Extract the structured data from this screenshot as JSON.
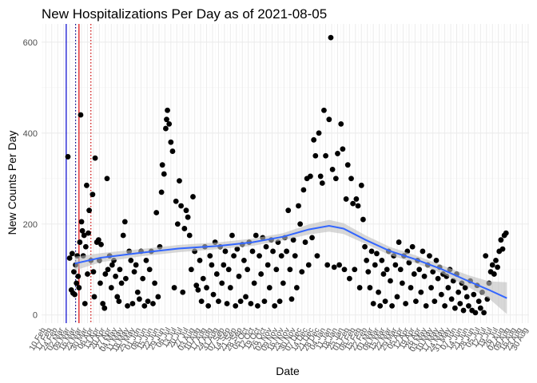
{
  "chart_data": {
    "type": "scatter",
    "title": "New Hospitalizations Per Day as of 2021-08-05",
    "xlabel": "Date",
    "ylabel": "New Counts Per Day",
    "ylim": [
      -18,
      640
    ],
    "y_ticks": [
      0,
      200,
      400,
      600
    ],
    "xlim": [
      "2020-02-05",
      "2021-08-31"
    ],
    "x_tick_labels": [
      "10 Feb",
      "17 Feb",
      "24 Feb",
      "02 Mar",
      "09 Mar",
      "16 Mar",
      "23 Mar",
      "30 Mar",
      "06 Apr",
      "13 Apr",
      "20 Apr",
      "27 Apr",
      "04 May",
      "11 May",
      "18 May",
      "25 May",
      "01 Jun",
      "08 Jun",
      "15 Jun",
      "22 Jun",
      "29 Jun",
      "06 Jul",
      "13 Jul",
      "20 Jul",
      "27 Jul",
      "03 Aug",
      "10 Aug",
      "17 Aug",
      "24 Aug",
      "31 Aug",
      "07 Sep",
      "14 Sep",
      "21 Sep",
      "28 Sep",
      "05 Oct",
      "12 Oct",
      "19 Oct",
      "26 Oct",
      "02 Nov",
      "09 Nov",
      "16 Nov",
      "23 Nov",
      "30 Nov",
      "07 Dec",
      "14 Dec",
      "21 Dec",
      "28 Dec",
      "04 Jan",
      "11 Jan",
      "18 Jan",
      "25 Jan",
      "01 Feb",
      "08 Feb",
      "15 Feb",
      "22 Feb",
      "01 Mar",
      "08 Mar",
      "15 Mar",
      "22 Mar",
      "29 Mar",
      "05 Apr",
      "12 Apr",
      "19 Apr",
      "26 Apr",
      "03 May",
      "10 May",
      "17 May",
      "24 May",
      "31 May",
      "07 Jun",
      "14 Jun",
      "21 Jun",
      "28 Jun",
      "05 Jul",
      "12 Jul",
      "19 Jul",
      "26 Jul",
      "02 Aug",
      "09 Aug",
      "16 Aug",
      "23 Aug",
      "30 Aug"
    ],
    "grid": true,
    "reference_lines": [
      {
        "date": "2020-03-05",
        "color": "#0000cc",
        "style": "solid"
      },
      {
        "date": "2020-03-16",
        "color": "#00008b",
        "style": "dotted"
      },
      {
        "date": "2020-03-20",
        "color": "#dd0000",
        "style": "solid"
      },
      {
        "date": "2020-04-03",
        "color": "#cc0000",
        "style": "dotted"
      }
    ],
    "point_color": "#000000",
    "smooth": {
      "color": "#3366ff",
      "band_color": "#bebebe",
      "points": [
        {
          "date": "2020-03-15",
          "y": 113,
          "lo": 98,
          "hi": 128
        },
        {
          "date": "2020-04-15",
          "y": 126,
          "lo": 116,
          "hi": 136
        },
        {
          "date": "2020-06-01",
          "y": 137,
          "lo": 129,
          "hi": 145
        },
        {
          "date": "2020-07-15",
          "y": 146,
          "lo": 138,
          "hi": 154
        },
        {
          "date": "2020-09-01",
          "y": 152,
          "lo": 145,
          "hi": 160
        },
        {
          "date": "2020-10-10",
          "y": 160,
          "lo": 152,
          "hi": 168
        },
        {
          "date": "2020-11-15",
          "y": 172,
          "lo": 164,
          "hi": 180
        },
        {
          "date": "2020-12-15",
          "y": 188,
          "lo": 177,
          "hi": 199
        },
        {
          "date": "2021-01-08",
          "y": 196,
          "lo": 183,
          "hi": 209
        },
        {
          "date": "2021-01-25",
          "y": 190,
          "lo": 178,
          "hi": 202
        },
        {
          "date": "2021-02-20",
          "y": 165,
          "lo": 156,
          "hi": 175
        },
        {
          "date": "2021-03-20",
          "y": 141,
          "lo": 132,
          "hi": 150
        },
        {
          "date": "2021-04-20",
          "y": 122,
          "lo": 114,
          "hi": 131
        },
        {
          "date": "2021-05-20",
          "y": 101,
          "lo": 92,
          "hi": 110
        },
        {
          "date": "2021-06-20",
          "y": 75,
          "lo": 62,
          "hi": 88
        },
        {
          "date": "2021-07-15",
          "y": 55,
          "lo": 36,
          "hi": 74
        },
        {
          "date": "2021-08-05",
          "y": 37,
          "lo": 2,
          "hi": 72
        }
      ]
    },
    "points": [
      [
        "2020-03-07",
        348
      ],
      [
        "2020-03-09",
        125
      ],
      [
        "2020-03-11",
        55
      ],
      [
        "2020-03-12",
        135
      ],
      [
        "2020-03-13",
        48
      ],
      [
        "2020-03-14",
        95
      ],
      [
        "2020-03-15",
        45
      ],
      [
        "2020-03-16",
        110
      ],
      [
        "2020-03-17",
        70
      ],
      [
        "2020-03-18",
        130
      ],
      [
        "2020-03-19",
        85
      ],
      [
        "2020-03-20",
        60
      ],
      [
        "2020-03-21",
        160
      ],
      [
        "2020-03-22",
        440
      ],
      [
        "2020-03-23",
        205
      ],
      [
        "2020-03-24",
        185
      ],
      [
        "2020-03-25",
        130
      ],
      [
        "2020-03-26",
        175
      ],
      [
        "2020-03-27",
        25
      ],
      [
        "2020-03-28",
        150
      ],
      [
        "2020-03-29",
        285
      ],
      [
        "2020-03-30",
        90
      ],
      [
        "2020-03-31",
        180
      ],
      [
        "2020-04-01",
        230
      ],
      [
        "2020-04-03",
        120
      ],
      [
        "2020-04-05",
        265
      ],
      [
        "2020-04-06",
        95
      ],
      [
        "2020-04-07",
        40
      ],
      [
        "2020-04-08",
        345
      ],
      [
        "2020-04-10",
        160
      ],
      [
        "2020-04-12",
        165
      ],
      [
        "2020-04-13",
        120
      ],
      [
        "2020-04-14",
        70
      ],
      [
        "2020-04-15",
        155
      ],
      [
        "2020-04-17",
        25
      ],
      [
        "2020-04-19",
        15
      ],
      [
        "2020-04-20",
        90
      ],
      [
        "2020-04-22",
        300
      ],
      [
        "2020-04-23",
        100
      ],
      [
        "2020-04-25",
        130
      ],
      [
        "2020-04-27",
        60
      ],
      [
        "2020-04-28",
        110
      ],
      [
        "2020-04-30",
        120
      ],
      [
        "2020-05-02",
        85
      ],
      [
        "2020-05-04",
        40
      ],
      [
        "2020-05-06",
        30
      ],
      [
        "2020-05-07",
        100
      ],
      [
        "2020-05-09",
        70
      ],
      [
        "2020-05-11",
        175
      ],
      [
        "2020-05-13",
        205
      ],
      [
        "2020-05-14",
        80
      ],
      [
        "2020-05-16",
        20
      ],
      [
        "2020-05-18",
        140
      ],
      [
        "2020-05-20",
        120
      ],
      [
        "2020-05-22",
        25
      ],
      [
        "2020-05-24",
        95
      ],
      [
        "2020-05-26",
        110
      ],
      [
        "2020-05-28",
        50
      ],
      [
        "2020-05-30",
        35
      ],
      [
        "2020-06-01",
        140
      ],
      [
        "2020-06-03",
        80
      ],
      [
        "2020-06-05",
        20
      ],
      [
        "2020-06-07",
        120
      ],
      [
        "2020-06-09",
        30
      ],
      [
        "2020-06-11",
        100
      ],
      [
        "2020-06-13",
        140
      ],
      [
        "2020-06-15",
        25
      ],
      [
        "2020-06-17",
        70
      ],
      [
        "2020-06-19",
        225
      ],
      [
        "2020-06-21",
        40
      ],
      [
        "2020-06-23",
        150
      ],
      [
        "2020-06-25",
        270
      ],
      [
        "2020-06-26",
        330
      ],
      [
        "2020-06-28",
        310
      ],
      [
        "2020-06-30",
        410
      ],
      [
        "2020-07-01",
        430
      ],
      [
        "2020-07-02",
        450
      ],
      [
        "2020-07-04",
        420
      ],
      [
        "2020-07-06",
        380
      ],
      [
        "2020-07-08",
        360
      ],
      [
        "2020-07-10",
        60
      ],
      [
        "2020-07-12",
        250
      ],
      [
        "2020-07-14",
        200
      ],
      [
        "2020-07-16",
        295
      ],
      [
        "2020-07-18",
        240
      ],
      [
        "2020-07-20",
        50
      ],
      [
        "2020-07-22",
        190
      ],
      [
        "2020-07-24",
        230
      ],
      [
        "2020-07-26",
        215
      ],
      [
        "2020-07-28",
        175
      ],
      [
        "2020-07-30",
        100
      ],
      [
        "2020-08-01",
        260
      ],
      [
        "2020-08-03",
        140
      ],
      [
        "2020-08-05",
        65
      ],
      [
        "2020-08-07",
        55
      ],
      [
        "2020-08-09",
        120
      ],
      [
        "2020-08-11",
        30
      ],
      [
        "2020-08-13",
        80
      ],
      [
        "2020-08-15",
        150
      ],
      [
        "2020-08-17",
        60
      ],
      [
        "2020-08-19",
        20
      ],
      [
        "2020-08-21",
        130
      ],
      [
        "2020-08-23",
        110
      ],
      [
        "2020-08-25",
        45
      ],
      [
        "2020-08-27",
        160
      ],
      [
        "2020-08-29",
        90
      ],
      [
        "2020-08-31",
        30
      ],
      [
        "2020-09-02",
        150
      ],
      [
        "2020-09-04",
        70
      ],
      [
        "2020-09-06",
        110
      ],
      [
        "2020-09-08",
        140
      ],
      [
        "2020-09-10",
        25
      ],
      [
        "2020-09-12",
        100
      ],
      [
        "2020-09-14",
        60
      ],
      [
        "2020-09-16",
        175
      ],
      [
        "2020-09-18",
        130
      ],
      [
        "2020-09-20",
        20
      ],
      [
        "2020-09-22",
        145
      ],
      [
        "2020-09-24",
        85
      ],
      [
        "2020-09-26",
        30
      ],
      [
        "2020-09-28",
        155
      ],
      [
        "2020-09-30",
        120
      ],
      [
        "2020-10-02",
        40
      ],
      [
        "2020-10-04",
        100
      ],
      [
        "2020-10-06",
        160
      ],
      [
        "2020-10-08",
        25
      ],
      [
        "2020-10-10",
        140
      ],
      [
        "2020-10-12",
        70
      ],
      [
        "2020-10-14",
        175
      ],
      [
        "2020-10-16",
        20
      ],
      [
        "2020-10-18",
        130
      ],
      [
        "2020-10-20",
        90
      ],
      [
        "2020-10-22",
        170
      ],
      [
        "2020-10-24",
        30
      ],
      [
        "2020-10-26",
        150
      ],
      [
        "2020-10-28",
        110
      ],
      [
        "2020-10-30",
        60
      ],
      [
        "2020-11-01",
        165
      ],
      [
        "2020-11-03",
        140
      ],
      [
        "2020-11-05",
        20
      ],
      [
        "2020-11-07",
        100
      ],
      [
        "2020-11-09",
        160
      ],
      [
        "2020-11-11",
        30
      ],
      [
        "2020-11-13",
        130
      ],
      [
        "2020-11-15",
        70
      ],
      [
        "2020-11-17",
        170
      ],
      [
        "2020-11-19",
        140
      ],
      [
        "2020-11-21",
        230
      ],
      [
        "2020-11-23",
        100
      ],
      [
        "2020-11-25",
        35
      ],
      [
        "2020-11-27",
        165
      ],
      [
        "2020-11-29",
        130
      ],
      [
        "2020-12-01",
        60
      ],
      [
        "2020-12-03",
        240
      ],
      [
        "2020-12-05",
        200
      ],
      [
        "2020-12-07",
        95
      ],
      [
        "2020-12-09",
        275
      ],
      [
        "2020-12-11",
        160
      ],
      [
        "2020-12-13",
        300
      ],
      [
        "2020-12-15",
        110
      ],
      [
        "2020-12-17",
        305
      ],
      [
        "2020-12-19",
        170
      ],
      [
        "2020-12-21",
        385
      ],
      [
        "2020-12-23",
        350
      ],
      [
        "2020-12-25",
        130
      ],
      [
        "2020-12-27",
        400
      ],
      [
        "2020-12-29",
        305
      ],
      [
        "2020-12-31",
        290
      ],
      [
        "2021-01-02",
        450
      ],
      [
        "2021-01-04",
        350
      ],
      [
        "2021-01-06",
        110
      ],
      [
        "2021-01-08",
        430
      ],
      [
        "2021-01-10",
        610
      ],
      [
        "2021-01-12",
        320
      ],
      [
        "2021-01-14",
        105
      ],
      [
        "2021-01-16",
        300
      ],
      [
        "2021-01-18",
        355
      ],
      [
        "2021-01-20",
        110
      ],
      [
        "2021-01-22",
        420
      ],
      [
        "2021-01-24",
        365
      ],
      [
        "2021-01-26",
        100
      ],
      [
        "2021-01-28",
        255
      ],
      [
        "2021-01-30",
        330
      ],
      [
        "2021-02-01",
        80
      ],
      [
        "2021-02-03",
        300
      ],
      [
        "2021-02-05",
        245
      ],
      [
        "2021-02-07",
        100
      ],
      [
        "2021-02-09",
        255
      ],
      [
        "2021-02-11",
        240
      ],
      [
        "2021-02-13",
        60
      ],
      [
        "2021-02-15",
        285
      ],
      [
        "2021-02-17",
        210
      ],
      [
        "2021-02-19",
        150
      ],
      [
        "2021-02-21",
        120
      ],
      [
        "2021-02-23",
        95
      ],
      [
        "2021-02-25",
        60
      ],
      [
        "2021-02-27",
        140
      ],
      [
        "2021-03-01",
        25
      ],
      [
        "2021-03-03",
        110
      ],
      [
        "2021-03-05",
        135
      ],
      [
        "2021-03-07",
        50
      ],
      [
        "2021-03-09",
        20
      ],
      [
        "2021-03-11",
        120
      ],
      [
        "2021-03-13",
        90
      ],
      [
        "2021-03-15",
        30
      ],
      [
        "2021-03-17",
        100
      ],
      [
        "2021-03-19",
        140
      ],
      [
        "2021-03-21",
        75
      ],
      [
        "2021-03-23",
        20
      ],
      [
        "2021-03-25",
        130
      ],
      [
        "2021-03-27",
        110
      ],
      [
        "2021-03-29",
        40
      ],
      [
        "2021-03-31",
        160
      ],
      [
        "2021-04-02",
        100
      ],
      [
        "2021-04-04",
        70
      ],
      [
        "2021-04-06",
        130
      ],
      [
        "2021-04-08",
        25
      ],
      [
        "2021-04-10",
        140
      ],
      [
        "2021-04-12",
        115
      ],
      [
        "2021-04-14",
        60
      ],
      [
        "2021-04-16",
        150
      ],
      [
        "2021-04-18",
        90
      ],
      [
        "2021-04-20",
        30
      ],
      [
        "2021-04-22",
        120
      ],
      [
        "2021-04-24",
        100
      ],
      [
        "2021-04-26",
        50
      ],
      [
        "2021-04-28",
        140
      ],
      [
        "2021-04-30",
        85
      ],
      [
        "2021-05-02",
        20
      ],
      [
        "2021-05-04",
        110
      ],
      [
        "2021-05-06",
        130
      ],
      [
        "2021-05-08",
        60
      ],
      [
        "2021-05-10",
        95
      ],
      [
        "2021-05-12",
        30
      ],
      [
        "2021-05-14",
        120
      ],
      [
        "2021-05-16",
        80
      ],
      [
        "2021-05-18",
        105
      ],
      [
        "2021-05-20",
        45
      ],
      [
        "2021-05-22",
        90
      ],
      [
        "2021-05-24",
        20
      ],
      [
        "2021-05-26",
        85
      ],
      [
        "2021-05-28",
        60
      ],
      [
        "2021-05-30",
        100
      ],
      [
        "2021-06-01",
        35
      ],
      [
        "2021-06-03",
        75
      ],
      [
        "2021-06-05",
        15
      ],
      [
        "2021-06-07",
        90
      ],
      [
        "2021-06-09",
        50
      ],
      [
        "2021-06-11",
        25
      ],
      [
        "2021-06-13",
        70
      ],
      [
        "2021-06-15",
        10
      ],
      [
        "2021-06-17",
        60
      ],
      [
        "2021-06-19",
        40
      ],
      [
        "2021-06-21",
        20
      ],
      [
        "2021-06-23",
        75
      ],
      [
        "2021-06-25",
        10
      ],
      [
        "2021-06-27",
        45
      ],
      [
        "2021-06-29",
        5
      ],
      [
        "2021-07-01",
        65
      ],
      [
        "2021-07-03",
        30
      ],
      [
        "2021-07-05",
        15
      ],
      [
        "2021-07-07",
        50
      ],
      [
        "2021-07-09",
        5
      ],
      [
        "2021-07-11",
        130
      ],
      [
        "2021-07-13",
        35
      ],
      [
        "2021-07-15",
        70
      ],
      [
        "2021-07-17",
        95
      ],
      [
        "2021-07-19",
        110
      ],
      [
        "2021-07-21",
        90
      ],
      [
        "2021-07-23",
        120
      ],
      [
        "2021-07-25",
        105
      ],
      [
        "2021-07-27",
        140
      ],
      [
        "2021-07-29",
        165
      ],
      [
        "2021-07-31",
        145
      ],
      [
        "2021-08-02",
        175
      ],
      [
        "2021-08-04",
        180
      ]
    ]
  }
}
